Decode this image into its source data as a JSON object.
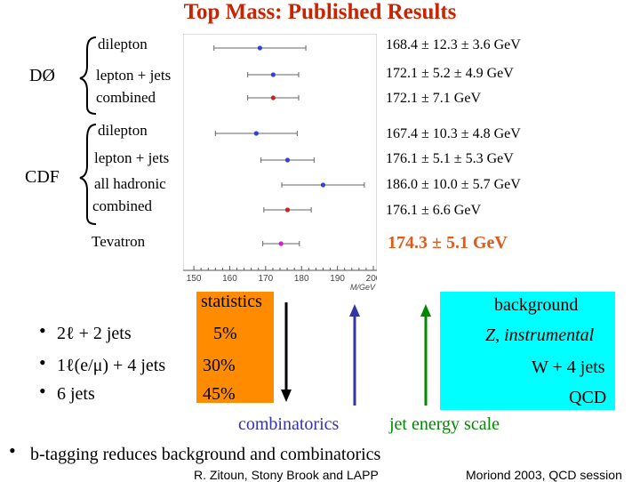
{
  "title": "Top Mass: Published Results",
  "groups": {
    "d0": "DØ",
    "cdf": "CDF"
  },
  "measurements": [
    {
      "label": "dilepton",
      "value_text": "168.4 ± 12.3 ± 3.6 GeV",
      "mass": 168.4,
      "err": 12.8,
      "color": "#3344cc"
    },
    {
      "label": "lepton + jets",
      "value_text": "172.1 ± 5.2 ± 4.9 GeV",
      "mass": 172.1,
      "err": 7.1,
      "color": "#3344cc"
    },
    {
      "label": "combined",
      "value_text": "172.1 ± 7.1 GeV",
      "mass": 172.1,
      "err": 7.1,
      "color": "#cc2222"
    },
    {
      "label": "dilepton",
      "value_text": "167.4 ± 10.3 ± 4.8 GeV",
      "mass": 167.4,
      "err": 11.4,
      "color": "#3344cc"
    },
    {
      "label": "lepton + jets",
      "value_text": "176.1 ± 5.1 ± 5.3 GeV",
      "mass": 176.1,
      "err": 7.4,
      "color": "#3344cc"
    },
    {
      "label": "all hadronic",
      "value_text": "186.0 ± 10.0 ± 5.7 GeV",
      "mass": 186.0,
      "err": 11.5,
      "color": "#3344cc"
    },
    {
      "label": "combined",
      "value_text": "176.1 ± 6.6 GeV",
      "mass": 176.1,
      "err": 6.6,
      "color": "#cc2222"
    },
    {
      "label": "Tevatron",
      "value_text": "174.3 ± 5.1 GeV",
      "mass": 174.3,
      "err": 5.1,
      "color": "#cc22cc"
    }
  ],
  "axis": {
    "ticks": [
      "150",
      "160",
      "170",
      "180",
      "190",
      "200"
    ],
    "tick_values": [
      150,
      160,
      170,
      180,
      190,
      200
    ],
    "label": "M/GeV",
    "min": 148,
    "max": 200
  },
  "uncertainties": {
    "statistics_label": "statistics",
    "items": [
      {
        "channel": "2ℓ + 2 jets",
        "percent": "5%"
      },
      {
        "channel": "1ℓ(e/μ) + 4 jets",
        "percent": "30%"
      },
      {
        "channel": "6 jets",
        "percent": "45%"
      }
    ],
    "background_lines": [
      "background",
      "Z, instrumental",
      "W + 4 jets",
      "QCD"
    ],
    "combinatorics": "combinatorics",
    "jet_energy_scale": "jet energy scale",
    "btag_note": "b-tagging reduces background and combinatorics"
  },
  "footer": {
    "left": "R. Zitoun, Stony Brook and LAPP",
    "right": "Moriond 2003, QCD session"
  },
  "colors": {
    "title": "#cc2200",
    "tevatron_value": "#e05a1a",
    "statistics_box": "#ff8c00",
    "background_box": "#00ffff",
    "blue_arrow": "#3333aa",
    "green_arrow": "#008800"
  }
}
